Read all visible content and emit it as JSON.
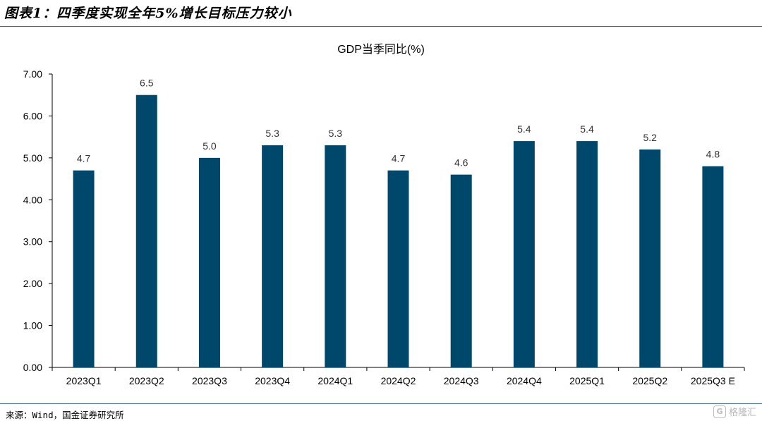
{
  "header": {
    "title": "图表1：四季度实现全年5%增长目标压力较小"
  },
  "footer": {
    "source": "来源：Wind，国金证券研究所",
    "watermark": "格隆汇"
  },
  "colors": {
    "bar": "#00486b",
    "rule": "#3d6b8f"
  },
  "chart_data": {
    "type": "bar",
    "title": "GDP当季同比(%)",
    "categories": [
      "2023Q1",
      "2023Q2",
      "2023Q3",
      "2023Q4",
      "2024Q1",
      "2024Q2",
      "2024Q3",
      "2024Q4",
      "2025Q1",
      "2025Q2",
      "2025Q3 E"
    ],
    "values": [
      4.7,
      6.5,
      5.0,
      5.3,
      5.3,
      4.7,
      4.6,
      5.4,
      5.4,
      5.2,
      4.8
    ],
    "data_labels": [
      "4.7",
      "6.5",
      "5.0",
      "5.3",
      "5.3",
      "4.7",
      "4.6",
      "5.4",
      "5.4",
      "5.2",
      "4.8"
    ],
    "yticks": [
      "0.00",
      "1.00",
      "2.00",
      "3.00",
      "4.00",
      "5.00",
      "6.00",
      "7.00"
    ],
    "ylim": [
      0,
      7
    ],
    "grid": false,
    "legend": "none"
  }
}
